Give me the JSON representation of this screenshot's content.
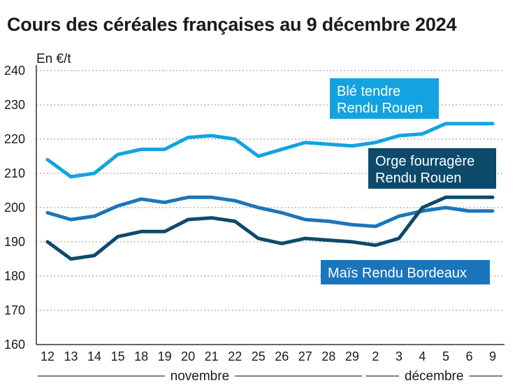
{
  "title": "Cours des céréales françaises au 9 décembre 2024",
  "colors": {
    "ble": "#12a3e0",
    "orge": "#0d4a6b",
    "mais": "#1b75bb",
    "grid": "#a6a6a6",
    "axis": "#333333"
  },
  "chart_data": {
    "type": "line",
    "title": "Cours des céréales françaises au 9 décembre 2024",
    "ylabel": "En €/t",
    "xlabel": "",
    "ylim": [
      160,
      240
    ],
    "yticks": [
      160,
      170,
      180,
      190,
      200,
      210,
      220,
      230,
      240
    ],
    "grid": true,
    "categories": [
      "12",
      "13",
      "14",
      "15",
      "18",
      "19",
      "20",
      "21",
      "22",
      "25",
      "26",
      "27",
      "28",
      "29",
      "2",
      "3",
      "4",
      "5",
      "6",
      "9"
    ],
    "months": [
      {
        "label": "novembre",
        "from": 0,
        "to": 13
      },
      {
        "label": "décembre",
        "from": 14,
        "to": 19
      }
    ],
    "series": [
      {
        "name": "Blé tendre Rendu Rouen",
        "legend_lines": [
          "Blé tendre",
          "Rendu Rouen"
        ],
        "color": "#12a3e0",
        "values": [
          214,
          209,
          210,
          215.5,
          217,
          217,
          220.5,
          221,
          220,
          215,
          217,
          219,
          218.5,
          218,
          219,
          221,
          221.5,
          224.5,
          224.5,
          224.5
        ]
      },
      {
        "name": "Orge fourragère Rendu Rouen",
        "legend_lines": [
          "Orge fourragère",
          "Rendu Rouen"
        ],
        "color": "#0d4a6b",
        "values": [
          190,
          185,
          186,
          191.5,
          193,
          193,
          196.5,
          197,
          196,
          191,
          189.5,
          191,
          190.5,
          190,
          189,
          191,
          200,
          203,
          203,
          203
        ]
      },
      {
        "name": "Maïs Rendu Bordeaux",
        "legend_lines": [
          "Maïs Rendu Bordeaux"
        ],
        "color": "#1b75bb",
        "values": [
          198.5,
          196.5,
          197.5,
          200.5,
          202.5,
          201.5,
          203,
          203,
          202,
          200,
          198.5,
          196.5,
          196,
          195,
          194.5,
          197.5,
          199,
          200,
          199,
          199
        ]
      }
    ]
  }
}
